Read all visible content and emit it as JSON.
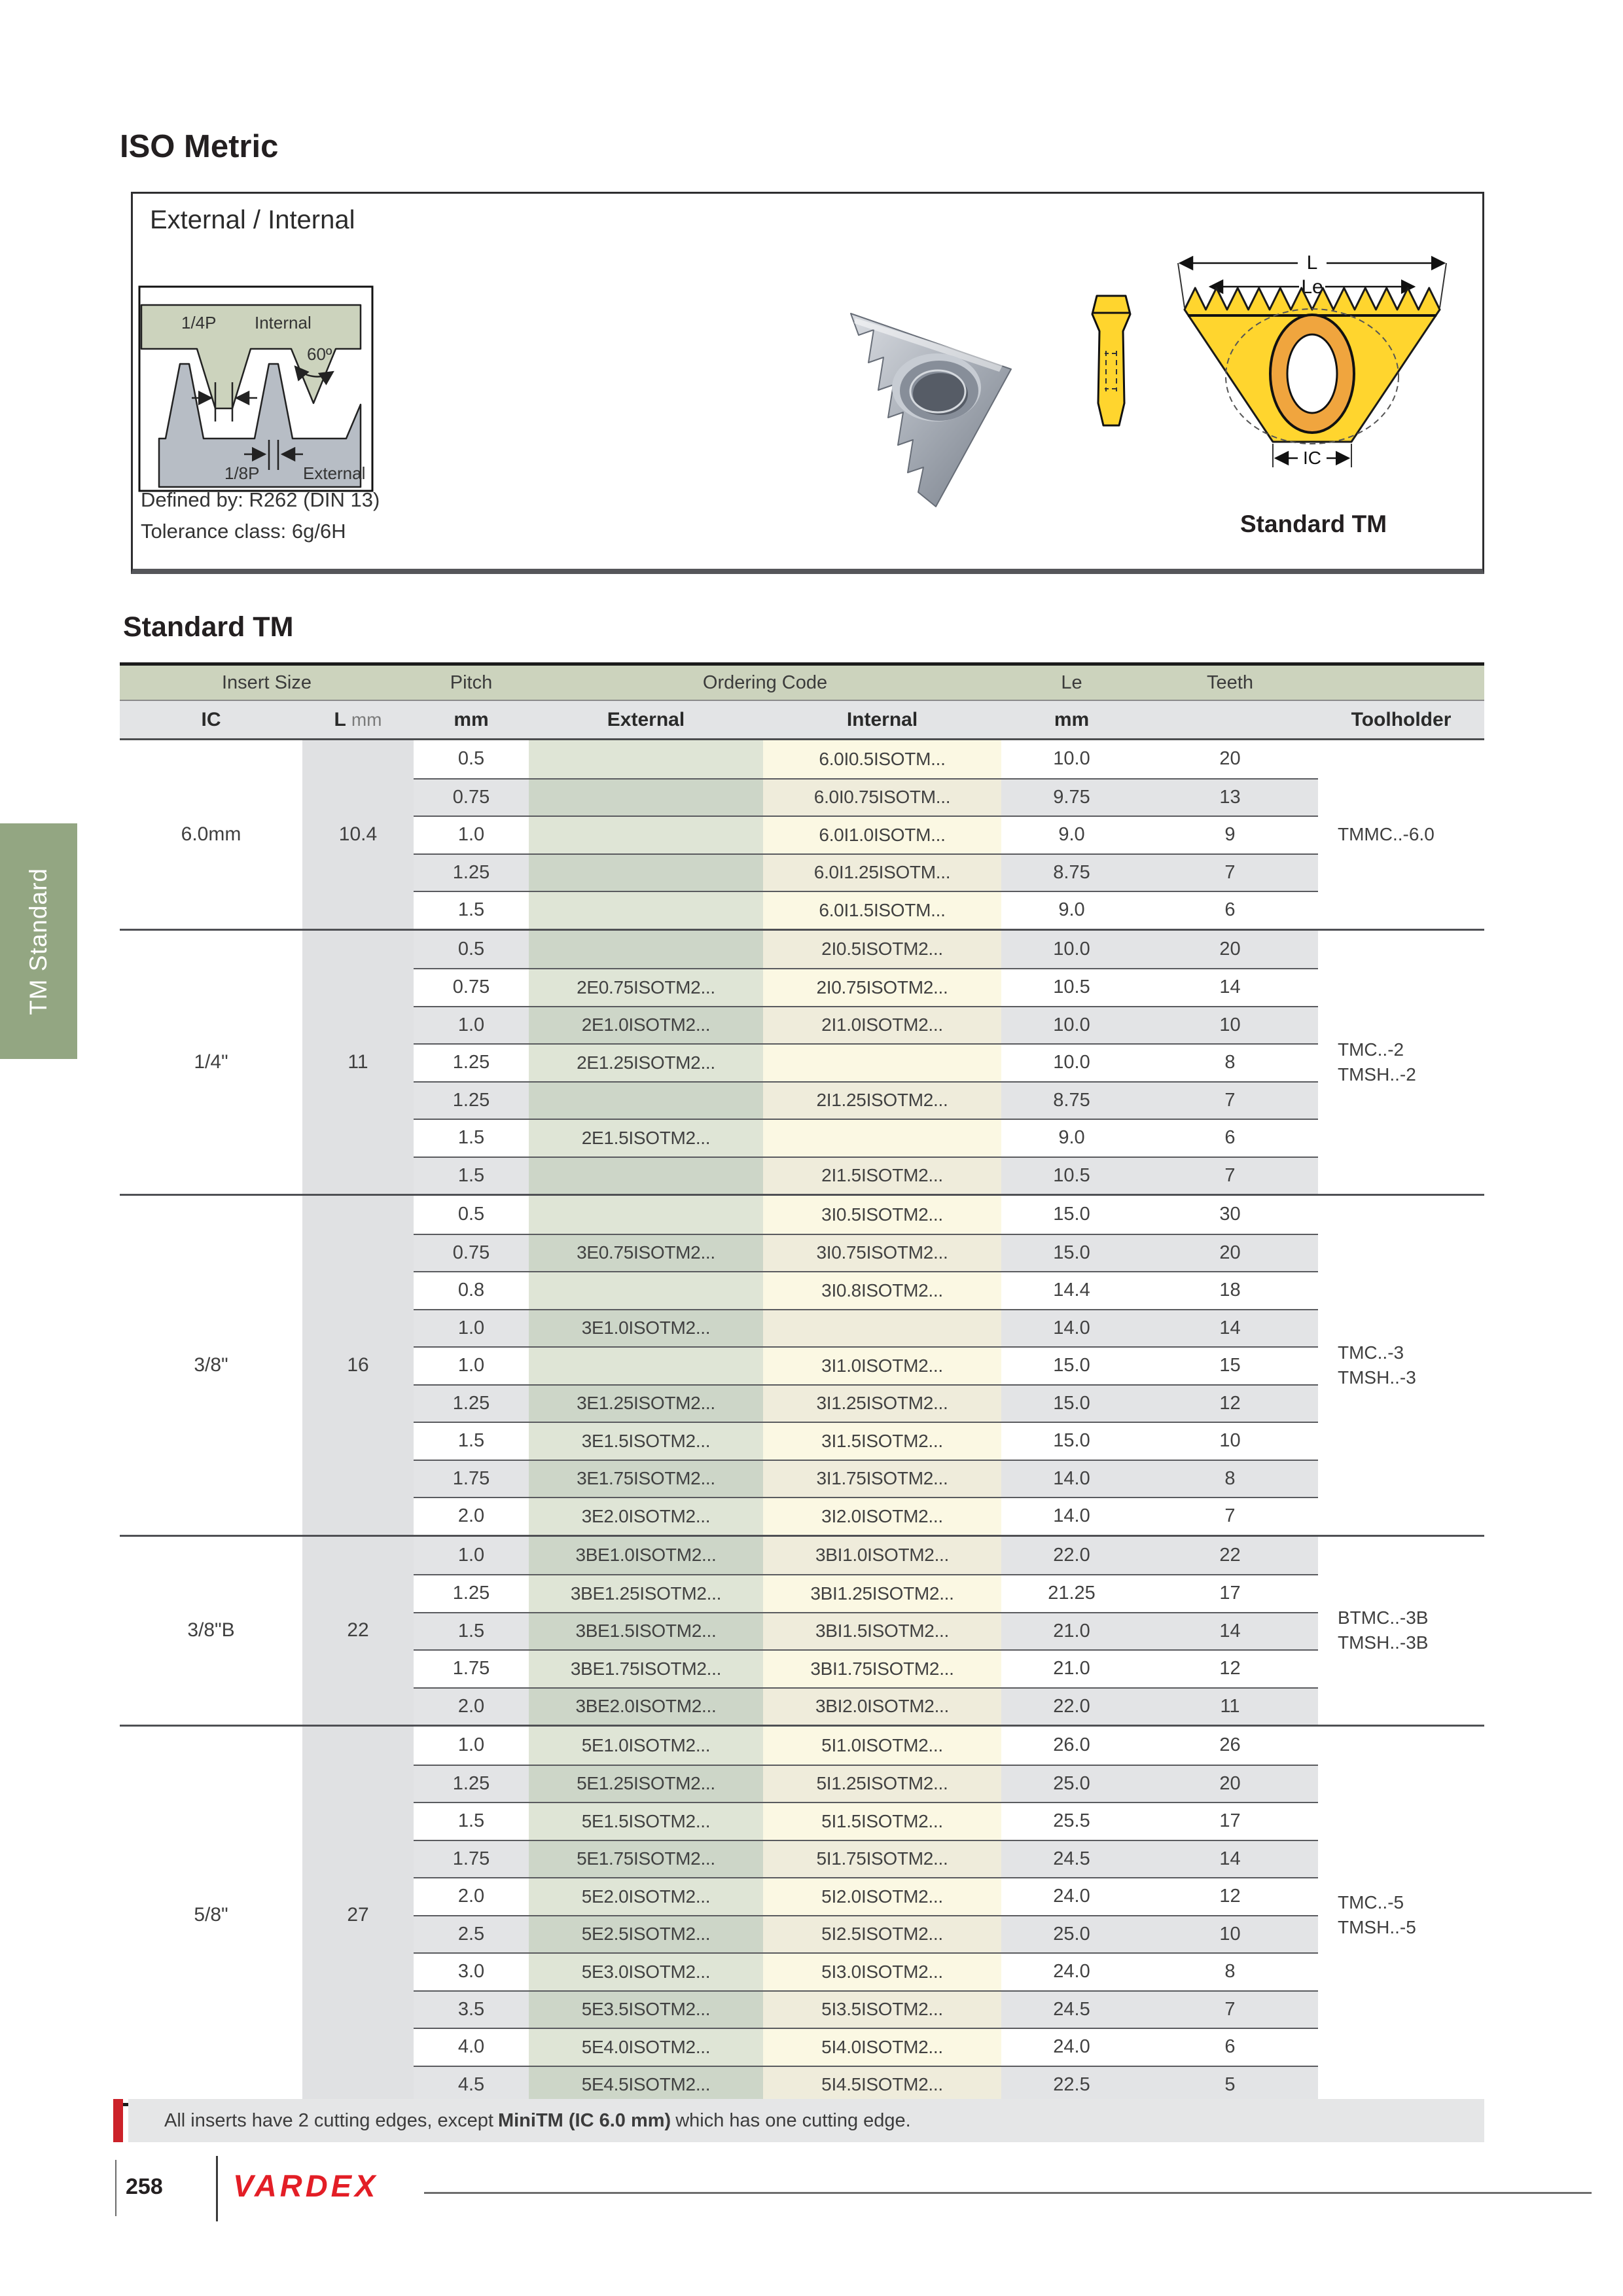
{
  "page": {
    "title": "ISO Metric",
    "page_number": "258",
    "brand": "VARDEX",
    "sidebar_tab": "TM Standard"
  },
  "intro": {
    "box_title": "External / Internal",
    "defined_by": "Defined by: R262 (DIN 13)",
    "tolerance": "Tolerance class: 6g/6H",
    "standard_label": "Standard TM",
    "profile_labels": {
      "quarter_p": "1/4P",
      "internal": "Internal",
      "angle": "60º",
      "eighth_p": "1/8P",
      "external": "External"
    },
    "dim_labels": {
      "l": "L",
      "le": "Le",
      "ic": "IC"
    }
  },
  "table": {
    "title": "Standard TM",
    "header": {
      "insert_size": "Insert Size",
      "pitch": "Pitch",
      "ordering_code": "Ordering Code",
      "le": "Le",
      "teeth": "Teeth",
      "ic": "IC",
      "l_main": "L",
      "l_unit": "mm",
      "pitch_unit": "mm",
      "external": "External",
      "internal": "Internal",
      "le_unit": "mm",
      "toolholder": "Toolholder"
    },
    "groups": [
      {
        "ic": "6.0mm",
        "l": "10.4",
        "toolholder": [
          "TMMC..-6.0"
        ],
        "rows": [
          {
            "pitch": "0.5",
            "ext": "",
            "int": "6.0I0.5ISOTM...",
            "le": "10.0",
            "teeth": "20"
          },
          {
            "pitch": "0.75",
            "ext": "",
            "int": "6.0I0.75ISOTM...",
            "le": "9.75",
            "teeth": "13"
          },
          {
            "pitch": "1.0",
            "ext": "",
            "int": "6.0I1.0ISOTM...",
            "le": "9.0",
            "teeth": "9"
          },
          {
            "pitch": "1.25",
            "ext": "",
            "int": "6.0I1.25ISOTM...",
            "le": "8.75",
            "teeth": "7"
          },
          {
            "pitch": "1.5",
            "ext": "",
            "int": "6.0I1.5ISOTM...",
            "le": "9.0",
            "teeth": "6"
          }
        ]
      },
      {
        "ic": "1/4\"",
        "l": "11",
        "toolholder": [
          "TMC..-2",
          "TMSH..-2"
        ],
        "rows": [
          {
            "pitch": "0.5",
            "ext": "",
            "int": "2I0.5ISOTM2...",
            "le": "10.0",
            "teeth": "20"
          },
          {
            "pitch": "0.75",
            "ext": "2E0.75ISOTM2...",
            "int": "2I0.75ISOTM2...",
            "le": "10.5",
            "teeth": "14"
          },
          {
            "pitch": "1.0",
            "ext": "2E1.0ISOTM2...",
            "int": "2I1.0ISOTM2...",
            "le": "10.0",
            "teeth": "10"
          },
          {
            "pitch": "1.25",
            "ext": "2E1.25ISOTM2...",
            "int": "",
            "le": "10.0",
            "teeth": "8"
          },
          {
            "pitch": "1.25",
            "ext": "",
            "int": "2I1.25ISOTM2...",
            "le": "8.75",
            "teeth": "7"
          },
          {
            "pitch": "1.5",
            "ext": "2E1.5ISOTM2...",
            "int": "",
            "le": "9.0",
            "teeth": "6"
          },
          {
            "pitch": "1.5",
            "ext": "",
            "int": "2I1.5ISOTM2...",
            "le": "10.5",
            "teeth": "7"
          }
        ]
      },
      {
        "ic": "3/8\"",
        "l": "16",
        "toolholder": [
          "TMC..-3",
          "TMSH..-3"
        ],
        "rows": [
          {
            "pitch": "0.5",
            "ext": "",
            "int": "3I0.5ISOTM2...",
            "le": "15.0",
            "teeth": "30"
          },
          {
            "pitch": "0.75",
            "ext": "3E0.75ISOTM2...",
            "int": "3I0.75ISOTM2...",
            "le": "15.0",
            "teeth": "20"
          },
          {
            "pitch": "0.8",
            "ext": "",
            "int": "3I0.8ISOTM2...",
            "le": "14.4",
            "teeth": "18"
          },
          {
            "pitch": "1.0",
            "ext": "3E1.0ISOTM2...",
            "int": "",
            "le": "14.0",
            "teeth": "14"
          },
          {
            "pitch": "1.0",
            "ext": "",
            "int": "3I1.0ISOTM2...",
            "le": "15.0",
            "teeth": "15"
          },
          {
            "pitch": "1.25",
            "ext": "3E1.25ISOTM2...",
            "int": "3I1.25ISOTM2...",
            "le": "15.0",
            "teeth": "12"
          },
          {
            "pitch": "1.5",
            "ext": "3E1.5ISOTM2...",
            "int": "3I1.5ISOTM2...",
            "le": "15.0",
            "teeth": "10"
          },
          {
            "pitch": "1.75",
            "ext": "3E1.75ISOTM2...",
            "int": "3I1.75ISOTM2...",
            "le": "14.0",
            "teeth": "8"
          },
          {
            "pitch": "2.0",
            "ext": "3E2.0ISOTM2...",
            "int": "3I2.0ISOTM2...",
            "le": "14.0",
            "teeth": "7"
          }
        ]
      },
      {
        "ic": "3/8\"B",
        "l": "22",
        "toolholder": [
          "BTMC..-3B",
          "TMSH..-3B"
        ],
        "rows": [
          {
            "pitch": "1.0",
            "ext": "3BE1.0ISOTM2...",
            "int": "3BI1.0ISOTM2...",
            "le": "22.0",
            "teeth": "22"
          },
          {
            "pitch": "1.25",
            "ext": "3BE1.25ISOTM2...",
            "int": "3BI1.25ISOTM2...",
            "le": "21.25",
            "teeth": "17"
          },
          {
            "pitch": "1.5",
            "ext": "3BE1.5ISOTM2...",
            "int": "3BI1.5ISOTM2...",
            "le": "21.0",
            "teeth": "14"
          },
          {
            "pitch": "1.75",
            "ext": "3BE1.75ISOTM2...",
            "int": "3BI1.75ISOTM2...",
            "le": "21.0",
            "teeth": "12"
          },
          {
            "pitch": "2.0",
            "ext": "3BE2.0ISOTM2...",
            "int": "3BI2.0ISOTM2...",
            "le": "22.0",
            "teeth": "11"
          }
        ]
      },
      {
        "ic": "5/8\"",
        "l": "27",
        "toolholder": [
          "TMC..-5",
          "TMSH..-5"
        ],
        "rows": [
          {
            "pitch": "1.0",
            "ext": "5E1.0ISOTM2...",
            "int": "5I1.0ISOTM2...",
            "le": "26.0",
            "teeth": "26"
          },
          {
            "pitch": "1.25",
            "ext": "5E1.25ISOTM2...",
            "int": "5I1.25ISOTM2...",
            "le": "25.0",
            "teeth": "20"
          },
          {
            "pitch": "1.5",
            "ext": "5E1.5ISOTM2...",
            "int": "5I1.5ISOTM2...",
            "le": "25.5",
            "teeth": "17"
          },
          {
            "pitch": "1.75",
            "ext": "5E1.75ISOTM2...",
            "int": "5I1.75ISOTM2...",
            "le": "24.5",
            "teeth": "14"
          },
          {
            "pitch": "2.0",
            "ext": "5E2.0ISOTM2...",
            "int": "5I2.0ISOTM2...",
            "le": "24.0",
            "teeth": "12"
          },
          {
            "pitch": "2.5",
            "ext": "5E2.5ISOTM2...",
            "int": "5I2.5ISOTM2...",
            "le": "25.0",
            "teeth": "10"
          },
          {
            "pitch": "3.0",
            "ext": "5E3.0ISOTM2...",
            "int": "5I3.0ISOTM2...",
            "le": "24.0",
            "teeth": "8"
          },
          {
            "pitch": "3.5",
            "ext": "5E3.5ISOTM2...",
            "int": "5I3.5ISOTM2...",
            "le": "24.5",
            "teeth": "7"
          },
          {
            "pitch": "4.0",
            "ext": "5E4.0ISOTM2...",
            "int": "5I4.0ISOTM2...",
            "le": "24.0",
            "teeth": "6"
          },
          {
            "pitch": "4.5",
            "ext": "5E4.5ISOTM2...",
            "int": "5I4.5ISOTM2...",
            "le": "22.5",
            "teeth": "5"
          }
        ]
      }
    ]
  },
  "note": {
    "prefix": "All inserts have 2 cutting edges, except",
    "bold": "MiniTM (IC 6.0 mm)",
    "suffix": "which has one cutting edge."
  },
  "colors": {
    "accent_red": "#cc2229",
    "sage_header": "#ccd3bd",
    "tab_green": "#93a682",
    "row_gray": "#e3e4e6",
    "l_col_gray": "#e0e1e3",
    "external_tint_light": "#dfe5d6",
    "external_tint_dark": "#cdd6c8",
    "internal_tint_light": "#fbf8e3",
    "internal_tint_dark": "#efecdb",
    "insert_yellow": "#ffd52e",
    "hole_orange": "#f0a53e"
  }
}
